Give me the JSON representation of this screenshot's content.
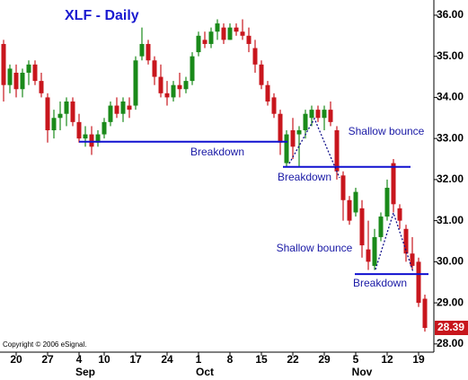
{
  "chart_data": {
    "type": "candlestick",
    "title": "XLF - Daily",
    "copyright": "Copyright © 2006 eSignal.",
    "categories": [
      null,
      null,
      "20",
      null,
      null,
      null,
      null,
      "27",
      null,
      null,
      null,
      null,
      "4",
      null,
      null,
      null,
      "10",
      null,
      null,
      null,
      null,
      "17",
      null,
      null,
      null,
      null,
      "24",
      null,
      null,
      null,
      null,
      "1",
      null,
      null,
      null,
      null,
      "8",
      null,
      null,
      null,
      null,
      "15",
      null,
      null,
      null,
      null,
      "22",
      null,
      null,
      null,
      null,
      "29",
      null,
      null,
      null,
      null,
      "5",
      null,
      null,
      null,
      null,
      "12",
      null,
      null,
      null,
      null,
      "19",
      null
    ],
    "months": [
      {
        "label": "Sep",
        "category": 12
      },
      {
        "label": "Oct",
        "category": 31
      },
      {
        "label": "Nov",
        "category": 56
      }
    ],
    "open": [
      35.3,
      34.3,
      34.6,
      34.2,
      34.6,
      34.8,
      34.4,
      34.0,
      33.2,
      33.5,
      33.6,
      33.9,
      33.4,
      33.0,
      33.1,
      32.9,
      33.1,
      33.4,
      33.8,
      33.6,
      33.8,
      33.8,
      35.0,
      35.3,
      34.9,
      34.5,
      34.1,
      34.0,
      34.3,
      34.2,
      34.4,
      35.1,
      35.4,
      35.3,
      35.6,
      35.7,
      35.4,
      35.7,
      35.6,
      35.5,
      35.2,
      34.8,
      34.3,
      34.0,
      33.6,
      32.4,
      33.2,
      33.1,
      33.2,
      33.5,
      33.7,
      33.5,
      33.7,
      33.2,
      32.1,
      31.5,
      31.2,
      31.3,
      30.3,
      29.9,
      30.6,
      31.1,
      32.4,
      31.3,
      30.8,
      30.2,
      30.0,
      29.1
    ],
    "high": [
      35.4,
      34.8,
      34.8,
      34.7,
      34.9,
      34.9,
      34.6,
      34.1,
      33.7,
      33.9,
      34.0,
      34.0,
      33.6,
      33.3,
      33.3,
      33.2,
      33.5,
      33.9,
      34.0,
      34.0,
      34.0,
      35.0,
      35.7,
      35.4,
      35.0,
      34.8,
      34.4,
      34.4,
      34.6,
      34.5,
      35.1,
      35.6,
      35.6,
      35.7,
      35.9,
      35.8,
      35.8,
      35.8,
      35.9,
      35.7,
      35.4,
      34.9,
      34.4,
      34.1,
      33.7,
      33.2,
      33.5,
      33.3,
      33.7,
      33.8,
      33.8,
      33.8,
      33.9,
      33.3,
      32.2,
      31.6,
      31.8,
      31.5,
      31.0,
      30.8,
      31.2,
      32.0,
      32.5,
      31.4,
      30.9,
      30.6,
      30.1,
      29.2
    ],
    "low": [
      33.9,
      34.1,
      34.0,
      34.0,
      34.3,
      34.3,
      34.0,
      32.9,
      33.0,
      33.2,
      33.3,
      33.3,
      32.9,
      32.8,
      32.6,
      32.8,
      33.0,
      33.3,
      33.5,
      33.4,
      33.5,
      33.7,
      34.9,
      34.8,
      34.3,
      34.0,
      33.8,
      33.9,
      34.0,
      34.1,
      34.3,
      35.0,
      35.2,
      35.2,
      35.4,
      35.3,
      35.4,
      35.5,
      35.4,
      35.1,
      34.6,
      34.2,
      33.8,
      33.5,
      32.6,
      32.3,
      32.5,
      32.3,
      33.0,
      33.3,
      33.4,
      33.2,
      33.3,
      32.0,
      31.0,
      30.9,
      31.1,
      30.1,
      29.8,
      29.8,
      30.5,
      31.0,
      31.2,
      30.8,
      30.0,
      29.8,
      28.9,
      28.3
    ],
    "close": [
      34.3,
      34.7,
      34.2,
      34.6,
      34.8,
      34.4,
      34.1,
      33.2,
      33.5,
      33.6,
      33.9,
      33.4,
      33.0,
      33.1,
      32.8,
      33.1,
      33.4,
      33.8,
      33.6,
      33.9,
      33.7,
      34.9,
      35.3,
      34.9,
      34.5,
      34.1,
      34.0,
      34.3,
      34.2,
      34.4,
      35.0,
      35.5,
      35.3,
      35.6,
      35.8,
      35.4,
      35.7,
      35.6,
      35.5,
      35.3,
      34.8,
      34.3,
      33.9,
      33.6,
      32.9,
      33.1,
      32.8,
      33.2,
      33.6,
      33.7,
      33.5,
      33.7,
      33.4,
      32.2,
      31.5,
      31.0,
      31.7,
      30.4,
      30.0,
      30.6,
      31.1,
      31.8,
      31.4,
      31.0,
      30.2,
      29.9,
      29.0,
      28.39
    ],
    "up_color": "#1a8a1a",
    "down_color": "#c8161d",
    "line_color": "#1010d0",
    "last_value": 28.39,
    "ylim": [
      27.8,
      36.37
    ],
    "yticks": [
      {
        "value": 28,
        "label": "28.00"
      },
      {
        "value": 29,
        "label": "29.00"
      },
      {
        "value": 30,
        "label": "30.00"
      },
      {
        "value": 31,
        "label": "31.00"
      },
      {
        "value": 32,
        "label": "32.00"
      },
      {
        "value": 33,
        "label": "33.00"
      },
      {
        "value": 34,
        "label": "34.00"
      },
      {
        "value": 35,
        "label": "35.00"
      },
      {
        "value": 36,
        "label": "36.00"
      }
    ],
    "levels": [
      {
        "text": "Breakdown",
        "value": 32.92
      },
      {
        "text": "Breakdown",
        "value": 32.31
      },
      {
        "text": "Breakdown",
        "value": 29.7
      }
    ],
    "notes": [
      "Shallow bounce",
      "Shallow bounce"
    ]
  }
}
